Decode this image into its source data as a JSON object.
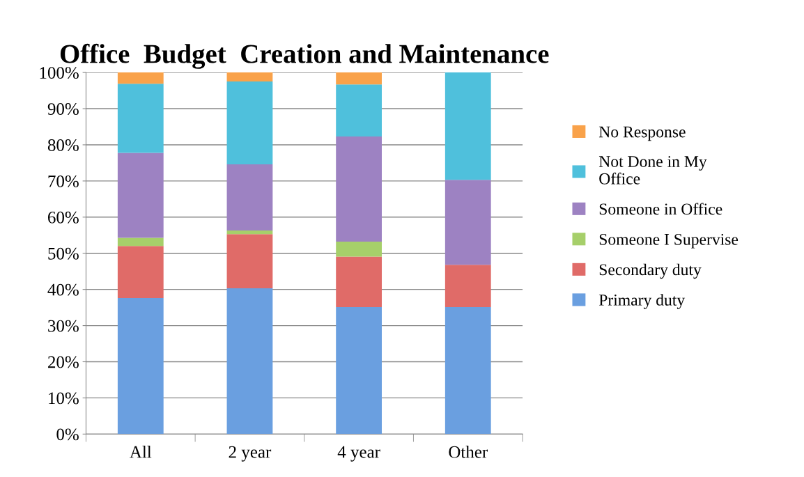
{
  "chart_data": {
    "type": "bar",
    "title": "Office  Budget  Creation and Maintenance",
    "categories": [
      "All",
      "2 year",
      "4 year",
      "Other"
    ],
    "stacked": true,
    "series": [
      {
        "name": "Primary duty",
        "color": "#6a9fe0",
        "values": [
          37.6,
          40.3,
          35.1,
          35.1
        ]
      },
      {
        "name": "Secondary duty",
        "color": "#e06b68",
        "values": [
          14.4,
          15.0,
          14.0,
          11.7
        ]
      },
      {
        "name": "Someone I Supervise",
        "color": "#a6cf6a",
        "values": [
          2.3,
          1.0,
          4.1,
          0
        ]
      },
      {
        "name": "Someone in Office",
        "color": "#9d82c2",
        "values": [
          23.5,
          18.3,
          29.1,
          23.5
        ]
      },
      {
        "name": "Not Done in My Office",
        "color": "#4fc0dc",
        "values": [
          19.1,
          22.9,
          14.4,
          29.7
        ]
      },
      {
        "name": "No Response",
        "color": "#f9a24a",
        "values": [
          3.1,
          2.5,
          3.3,
          0
        ]
      }
    ],
    "ylim": [
      0,
      100
    ],
    "yticks": [
      {
        "value": 0,
        "label": "0%"
      },
      {
        "value": 10,
        "label": "10%"
      },
      {
        "value": 20,
        "label": "20%"
      },
      {
        "value": 30,
        "label": "30%"
      },
      {
        "value": 40,
        "label": "40%"
      },
      {
        "value": 50,
        "label": "50%"
      },
      {
        "value": 60,
        "label": "60%"
      },
      {
        "value": 70,
        "label": "70%"
      },
      {
        "value": 80,
        "label": "80%"
      },
      {
        "value": 90,
        "label": "90%"
      },
      {
        "value": 100,
        "label": "100%"
      }
    ],
    "grid": "y",
    "legend": "right"
  }
}
